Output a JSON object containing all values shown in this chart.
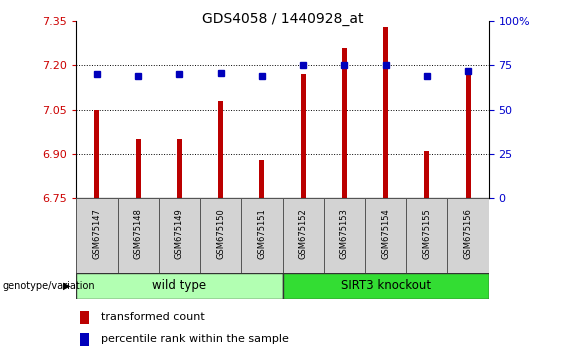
{
  "title": "GDS4058 / 1440928_at",
  "samples": [
    "GSM675147",
    "GSM675148",
    "GSM675149",
    "GSM675150",
    "GSM675151",
    "GSM675152",
    "GSM675153",
    "GSM675154",
    "GSM675155",
    "GSM675156"
  ],
  "transformed_count": [
    7.05,
    6.95,
    6.95,
    7.08,
    6.88,
    7.17,
    7.26,
    7.33,
    6.91,
    7.17
  ],
  "percentile_rank": [
    70,
    69,
    70,
    71,
    69,
    75,
    75,
    75,
    69,
    72
  ],
  "ylim_left": [
    6.75,
    7.35
  ],
  "ylim_right": [
    0,
    100
  ],
  "yticks_left": [
    6.75,
    6.9,
    7.05,
    7.2,
    7.35
  ],
  "yticks_right": [
    0,
    25,
    50,
    75,
    100
  ],
  "hlines": [
    7.2,
    7.05,
    6.9
  ],
  "bar_color": "#bb0000",
  "dot_color": "#0000bb",
  "wild_type_label": "wild type",
  "knockout_label": "SIRT3 knockout",
  "genotype_label": "genotype/variation",
  "legend_bar_label": "transformed count",
  "legend_dot_label": "percentile rank within the sample",
  "group_color_wild": "#b2ffb2",
  "group_color_ko": "#33dd33",
  "tick_label_color_left": "#cc0000",
  "tick_label_color_right": "#0000cc",
  "bar_width": 0.12
}
